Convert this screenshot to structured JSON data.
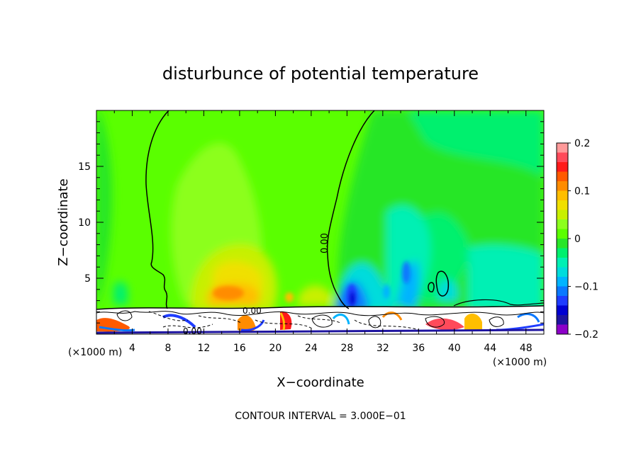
{
  "chart_data": {
    "type": "heatmap",
    "title": "disturbunce of potential temperature",
    "xlabel": "X−coordinate",
    "ylabel": "Z−coordinate",
    "x_unit_left": "(×1000 m)",
    "x_unit_right": "(×1000 m)",
    "xlim": [
      0,
      50
    ],
    "ylim": [
      0,
      20
    ],
    "x_ticks": [
      4,
      8,
      12,
      16,
      20,
      24,
      28,
      32,
      36,
      40,
      44,
      48
    ],
    "x_tick_labels": [
      "4",
      "8",
      "12",
      "16",
      "20",
      "24",
      "28",
      "32",
      "36",
      "40",
      "44",
      "48"
    ],
    "y_ticks": [
      5,
      10,
      15
    ],
    "y_tick_labels": [
      "5",
      "10",
      "15"
    ],
    "contour_labels": [
      "0.00",
      "0.00",
      "0.00"
    ],
    "colorbar": {
      "range": [
        -0.2,
        0.2
      ],
      "tick_values": [
        0.2,
        0.1,
        0,
        -0.1,
        -0.2
      ],
      "tick_labels": [
        "0.2",
        "0.1",
        "0",
        "−0.1",
        "−0.2"
      ],
      "colors": [
        "#ff9a9a",
        "#ff4a5a",
        "#ff1a1a",
        "#ff5a00",
        "#ff8c00",
        "#ffbe00",
        "#f0e000",
        "#c8f000",
        "#8cff1e",
        "#5aff00",
        "#28e628",
        "#00f06e",
        "#00f0b4",
        "#00dcdc",
        "#00b4ff",
        "#0a78ff",
        "#1e3cff",
        "#0000d2",
        "#1e14a0",
        "#8c00c8"
      ]
    },
    "footer": "CONTOUR INTERVAL = 3.000E−01"
  }
}
